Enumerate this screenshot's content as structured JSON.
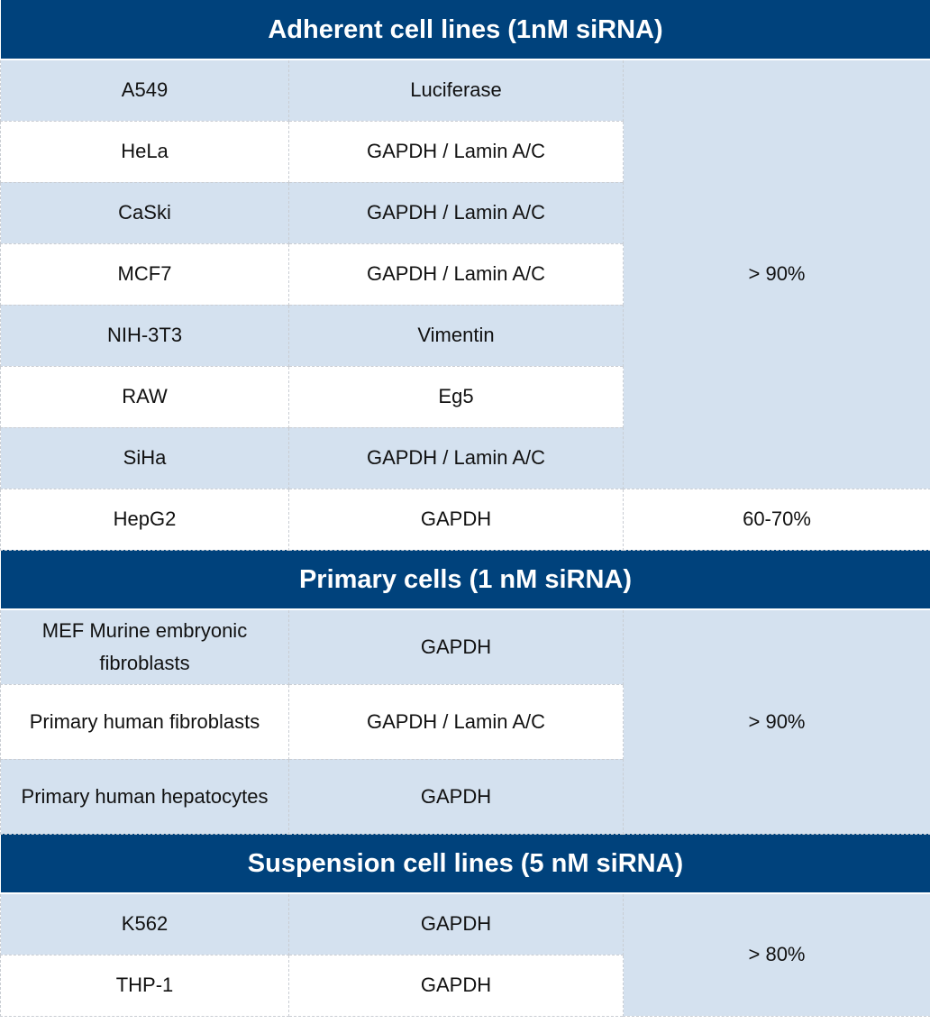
{
  "sections": [
    {
      "title": "Adherent cell lines (1nM siRNA)",
      "rows": [
        [
          "A549",
          "Luciferase"
        ],
        [
          "HeLa",
          "GAPDH / Lamin A/C"
        ],
        [
          "CaSki",
          "GAPDH / Lamin A/C"
        ],
        [
          "MCF7",
          "GAPDH / Lamin A/C"
        ],
        [
          "NIH-3T3",
          "Vimentin"
        ],
        [
          "RAW",
          "Eg5"
        ],
        [
          "SiHa",
          "GAPDH / Lamin A/C"
        ],
        [
          "HepG2",
          "GAPDH"
        ]
      ],
      "efficiency": [
        "> 90%",
        "60-70%"
      ]
    },
    {
      "title": "Primary cells (1 nM siRNA)",
      "rows": [
        [
          "MEF Murine embryonic fibroblasts",
          "GAPDH"
        ],
        [
          "Primary human fibroblasts",
          "GAPDH / Lamin A/C"
        ],
        [
          "Primary human hepatocytes",
          "GAPDH"
        ]
      ],
      "efficiency": [
        "> 90%"
      ]
    },
    {
      "title": "Suspension cell lines (5 nM siRNA)",
      "rows": [
        [
          "K562",
          "GAPDH"
        ],
        [
          "THP-1",
          "GAPDH"
        ]
      ],
      "efficiency": [
        "> 80%"
      ]
    }
  ],
  "colors": {
    "header": "#00427c",
    "band": "#d4e1ef"
  }
}
